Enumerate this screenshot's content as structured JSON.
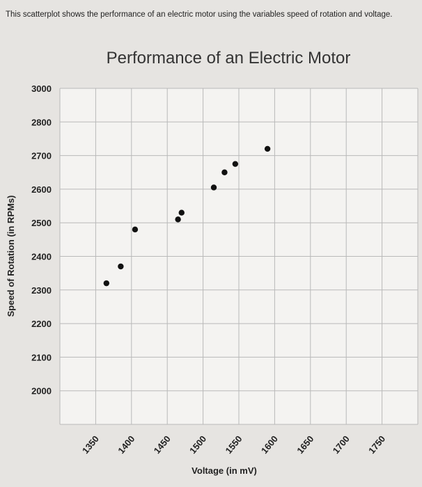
{
  "intro_text": "This scatterplot shows the performance of an electric motor using the variables speed of rotation and voltage.",
  "chart_data": {
    "type": "scatter",
    "title": "Performance of an Electric Motor",
    "xlabel": "Voltage (in mV)",
    "ylabel": "Speed of Rotation (in RPMs)",
    "x_ticks": [
      1350,
      1400,
      1450,
      1500,
      1550,
      1600,
      1650,
      1700,
      1750
    ],
    "y_ticks": [
      3000,
      2800,
      2700,
      2600,
      2500,
      2400,
      2300,
      2200,
      2100,
      2000
    ],
    "grid": true,
    "points": [
      {
        "x": 1365,
        "y": 2320
      },
      {
        "x": 1385,
        "y": 2370
      },
      {
        "x": 1405,
        "y": 2480
      },
      {
        "x": 1465,
        "y": 2510
      },
      {
        "x": 1470,
        "y": 2530
      },
      {
        "x": 1515,
        "y": 2605
      },
      {
        "x": 1530,
        "y": 2650
      },
      {
        "x": 1545,
        "y": 2675
      },
      {
        "x": 1590,
        "y": 2720
      }
    ],
    "colors": {
      "point": "#111111",
      "grid": "#b9b9b9",
      "background": "#f4f3f1"
    }
  }
}
